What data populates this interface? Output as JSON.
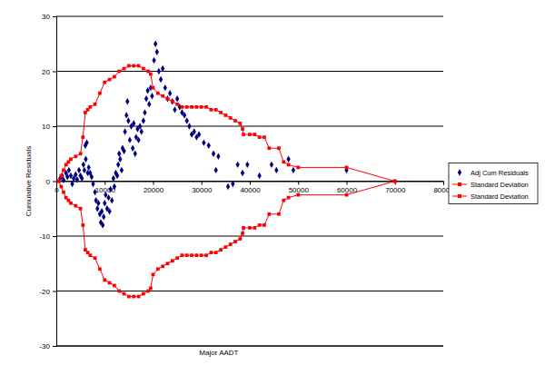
{
  "chart_data": {
    "type": "scatter",
    "x_label": "Major AADT",
    "y_label": "Cumulative Residuals",
    "xlim": [
      0,
      80000
    ],
    "xticks": [
      0,
      10000,
      20000,
      30000,
      40000,
      50000,
      60000,
      70000,
      80000
    ],
    "ylim": [
      -30,
      30
    ],
    "yticks": [
      -30,
      -20,
      -10,
      0,
      10,
      20,
      30
    ],
    "grid": true,
    "legend": "right",
    "series": [
      {
        "name": "Adj Cum Residuals",
        "type": "scatter",
        "marker": "diamond",
        "color": "#000080",
        "x": [
          800,
          1200,
          1500,
          2000,
          2300,
          2600,
          3000,
          3300,
          3600,
          4000,
          4300,
          4700,
          5000,
          5300,
          5600,
          5800,
          6000,
          6100,
          6300,
          6500,
          6700,
          7000,
          7300,
          7600,
          8000,
          8200,
          8500,
          8700,
          9000,
          9200,
          9400,
          9600,
          9800,
          10000,
          10200,
          10500,
          10800,
          11000,
          11200,
          11500,
          11800,
          12000,
          12300,
          12600,
          12800,
          13000,
          13200,
          13500,
          13700,
          14000,
          14200,
          14500,
          14700,
          14900,
          15200,
          15500,
          15800,
          16000,
          16300,
          16500,
          16800,
          17000,
          17300,
          17600,
          18000,
          18300,
          18600,
          18900,
          19200,
          19500,
          19800,
          20200,
          20500,
          20800,
          21200,
          21600,
          22000,
          22500,
          23000,
          23500,
          24000,
          24500,
          25000,
          25500,
          26000,
          26500,
          27000,
          27500,
          28000,
          28500,
          29000,
          29500,
          30500,
          31500,
          32500,
          33000,
          33500,
          35500,
          36500,
          37500,
          38500,
          39500,
          42000,
          44500,
          45500,
          48000,
          49000,
          60000
        ],
        "values": [
          0.5,
          1,
          0.2,
          1.5,
          0.8,
          2,
          1,
          -0.5,
          0.5,
          1.2,
          0.3,
          2,
          1,
          0.5,
          3,
          2,
          6.5,
          4,
          7,
          1.5,
          2.5,
          1.5,
          0.8,
          -0.5,
          -2,
          -3.5,
          -5,
          -4,
          -6,
          -7.5,
          -5.5,
          -8,
          -6.5,
          -4,
          -2.5,
          -5,
          -3,
          -5.5,
          -1.5,
          -3.5,
          0.5,
          -1,
          1.5,
          1,
          3,
          5,
          4,
          2,
          6,
          5.5,
          9,
          12,
          14.5,
          11,
          7.5,
          10,
          6,
          10.5,
          5,
          8,
          9.5,
          7.5,
          10,
          9,
          11,
          12.5,
          15,
          16.5,
          14,
          17,
          15.5,
          22,
          25,
          23.5,
          20,
          18.5,
          20.5,
          17,
          15,
          16,
          14.5,
          13,
          15,
          13.5,
          12.5,
          12,
          11,
          10,
          8.5,
          9,
          8,
          8.5,
          7,
          6.5,
          5,
          2,
          4.5,
          -1,
          -0.5,
          3,
          1.5,
          3,
          1,
          3,
          2,
          4,
          2,
          2
        ]
      },
      {
        "name": "Standard Deviation",
        "type": "line",
        "marker": "square",
        "color": "#ff0000",
        "x": [
          500,
          1000,
          1500,
          2000,
          2500,
          3000,
          4000,
          5000,
          5500,
          6000,
          6500,
          7000,
          8000,
          9000,
          10000,
          11000,
          12000,
          13000,
          14000,
          15000,
          16000,
          17000,
          18000,
          19000,
          19500,
          20000,
          21000,
          22000,
          23000,
          24000,
          25000,
          26000,
          27000,
          28000,
          29000,
          30000,
          31000,
          32000,
          33000,
          34000,
          35000,
          36000,
          37000,
          38000,
          38500,
          38700,
          40000,
          41000,
          42000,
          43000,
          44000,
          46000,
          47000,
          48000,
          50000,
          60000,
          70000
        ],
        "values": [
          0,
          1,
          2,
          3,
          3.5,
          4,
          4.5,
          5,
          8,
          12.5,
          13,
          13.5,
          14,
          16,
          18,
          18.5,
          19,
          20,
          20.5,
          21,
          21,
          21,
          20.5,
          20,
          19.5,
          17,
          16,
          15.5,
          15,
          14.5,
          14,
          13.5,
          13.5,
          13.5,
          13.5,
          13.5,
          13.5,
          13,
          13,
          12.5,
          12,
          11.5,
          11,
          10.5,
          9.5,
          8.5,
          8.5,
          8.5,
          8,
          8,
          6,
          6,
          3.5,
          3,
          2.5,
          2.5,
          0
        ]
      },
      {
        "name": "Standard Deviation",
        "type": "line",
        "marker": "square",
        "color": "#ff0000",
        "x": [
          500,
          1000,
          1500,
          2000,
          2500,
          3000,
          4000,
          5000,
          5500,
          6000,
          6500,
          7000,
          8000,
          9000,
          10000,
          11000,
          12000,
          13000,
          14000,
          15000,
          16000,
          17000,
          18000,
          19000,
          19500,
          20000,
          21000,
          22000,
          23000,
          24000,
          25000,
          26000,
          27000,
          28000,
          29000,
          30000,
          31000,
          32000,
          33000,
          34000,
          35000,
          36000,
          37000,
          38000,
          38500,
          38700,
          40000,
          41000,
          42000,
          43000,
          44000,
          46000,
          47000,
          48000,
          50000,
          60000,
          70000
        ],
        "values": [
          0,
          -1,
          -2,
          -3,
          -3.5,
          -4,
          -4.5,
          -5,
          -8,
          -12.5,
          -13,
          -13.5,
          -14,
          -16,
          -18,
          -18.5,
          -19,
          -20,
          -20.5,
          -21,
          -21,
          -21,
          -20.5,
          -20,
          -19.5,
          -17,
          -16,
          -15.5,
          -15,
          -14.5,
          -14,
          -13.5,
          -13.5,
          -13.5,
          -13.5,
          -13.5,
          -13.5,
          -13,
          -13,
          -12.5,
          -12,
          -11.5,
          -11,
          -10.5,
          -9.5,
          -8.5,
          -8.5,
          -8.5,
          -8,
          -8,
          -6,
          -6,
          -3.5,
          -3,
          -2.5,
          -2.5,
          0
        ]
      }
    ]
  }
}
